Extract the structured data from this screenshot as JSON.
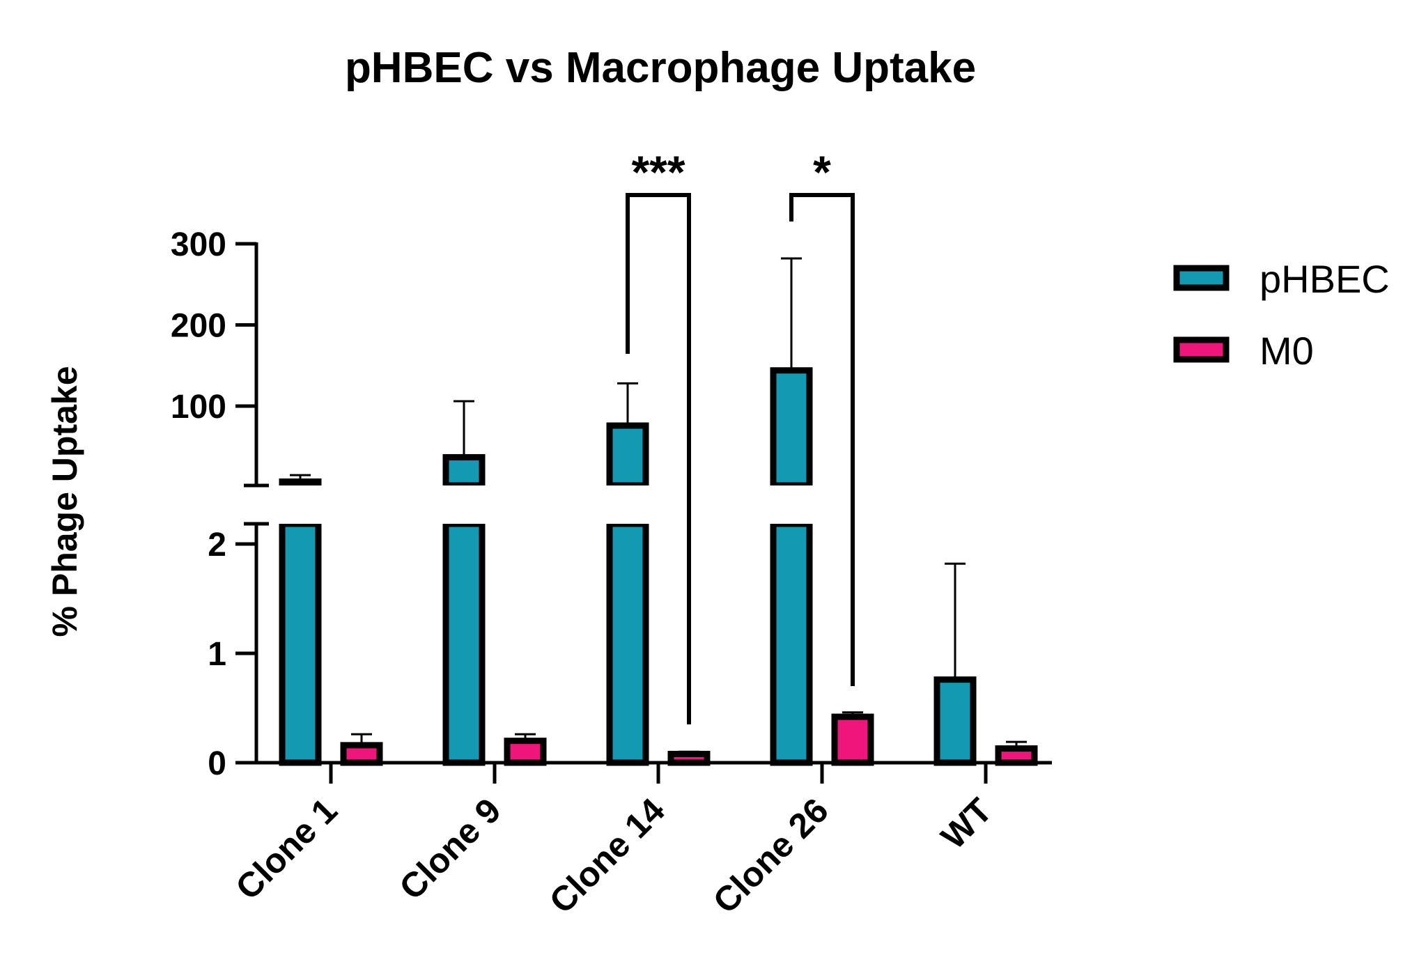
{
  "chart_data": {
    "type": "bar",
    "title": "pHBEC vs Macrophage Uptake",
    "xlabel": "",
    "ylabel": "% Phage Uptake",
    "axis_break": true,
    "ylim_lower": [
      0,
      2.2
    ],
    "ylim_upper": [
      2.2,
      300
    ],
    "yticks_lower": [
      "0",
      "1",
      "2"
    ],
    "yticks_upper": [
      "100",
      "200",
      "300"
    ],
    "categories": [
      "Clone 1",
      "Clone 9",
      "Clone 14",
      "Clone 26",
      "WT"
    ],
    "series": [
      {
        "name": "pHBEC",
        "color": "#1499b3",
        "values": [
          7,
          37,
          76,
          144,
          0.76
        ],
        "errors": [
          8,
          69,
          52,
          138,
          1.06
        ]
      },
      {
        "name": "M0",
        "color": "#f0157a",
        "values": [
          0.16,
          0.2,
          0.08,
          0.42,
          0.13
        ],
        "errors": [
          0.1,
          0.06,
          0.02,
          0.04,
          0.06
        ]
      }
    ],
    "significance": [
      {
        "category": "Clone 14",
        "label": "***"
      },
      {
        "category": "Clone 26",
        "label": "*"
      }
    ],
    "legend_position": "right",
    "grid": false
  }
}
